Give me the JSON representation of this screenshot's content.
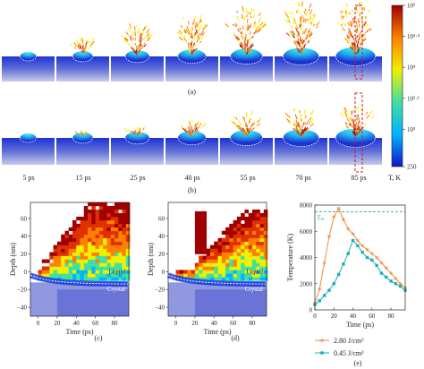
{
  "panel_labels": {
    "a": "(a)",
    "b": "(b)",
    "c": "(c)",
    "d": "(d)",
    "e": "(e)"
  },
  "time_labels": [
    "5 ps",
    "15 ps",
    "25 ps",
    "40 ps",
    "55 ps",
    "70 ps",
    "85 ps"
  ],
  "colorbar": {
    "unit": "T, K",
    "ticks": [
      "10⁵",
      "10⁴·⁵",
      "10⁴",
      "10³·⁵",
      "10³",
      "250"
    ],
    "tick_values": [
      100000,
      31623,
      10000,
      3162,
      1000,
      250
    ],
    "scale": "log",
    "range": [
      250,
      100000
    ],
    "colors": [
      "#1414c8",
      "#00b4ff",
      "#40e0a0",
      "#f0f000",
      "#ff8000",
      "#a00000"
    ]
  },
  "colors": {
    "high_fluence": "#f08c3c",
    "low_fluence": "#18b0b8",
    "tm_line": "#18a880",
    "substrate": "#1e32d2",
    "interface": "#ffffff",
    "marker_box": "#d01818"
  },
  "maps": {
    "xlabel": "Time (ps)",
    "ylabel": "Depth (nm)",
    "xticks": [
      "0",
      "20",
      "40",
      "60",
      "80"
    ],
    "yticks": [
      "60",
      "40",
      "20",
      "0",
      "−20",
      "−40"
    ],
    "liquid_label": "Liquid",
    "crystal_label": "Crystal"
  },
  "chart_data": {
    "type": "line",
    "xlabel": "Time (ps)",
    "ylabel": "Temperature (K)",
    "xlim": [
      0,
      95
    ],
    "ylim": [
      0,
      8000
    ],
    "xticks": [
      "0",
      "20",
      "40",
      "60",
      "80"
    ],
    "yticks": [
      "0",
      "2000",
      "4000",
      "6000",
      "8000"
    ],
    "annotation": "Tₘ",
    "tm_value": 7500,
    "series": [
      {
        "name": "2.80 J/cm²",
        "x": [
          0,
          5,
          10,
          15,
          20,
          25,
          30,
          35,
          40,
          45,
          50,
          55,
          60,
          65,
          70,
          75,
          80,
          85,
          90,
          95
        ],
        "values": [
          500,
          1600,
          3600,
          5600,
          7100,
          7750,
          6900,
          6200,
          5800,
          5300,
          4900,
          4600,
          4300,
          4000,
          3600,
          3200,
          2800,
          2400,
          2000,
          1700
        ]
      },
      {
        "name": "0.45 J/cm²",
        "x": [
          0,
          5,
          10,
          15,
          20,
          25,
          30,
          35,
          40,
          45,
          50,
          55,
          60,
          65,
          70,
          75,
          80,
          85,
          90,
          95
        ],
        "values": [
          400,
          700,
          1100,
          1500,
          2000,
          2700,
          3500,
          4300,
          5300,
          4900,
          4400,
          4000,
          3800,
          3400,
          2800,
          2500,
          2200,
          2000,
          1800,
          1500
        ]
      }
    ]
  }
}
